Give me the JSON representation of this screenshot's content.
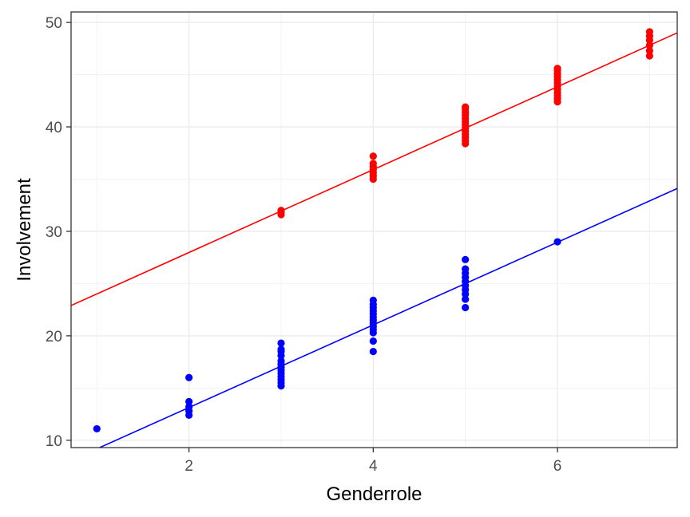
{
  "chart_data": {
    "type": "scatter",
    "xlabel": "Genderrole",
    "ylabel": "Involvement",
    "xlim": [
      0.72,
      7.3
    ],
    "ylim": [
      9.3,
      51.0
    ],
    "x_ticks": [
      2,
      4,
      6
    ],
    "x_tick_labels": [
      "2",
      "4",
      "6"
    ],
    "y_ticks": [
      10,
      20,
      30,
      40,
      50
    ],
    "y_tick_labels": [
      "10",
      "20",
      "30",
      "40",
      "50"
    ],
    "grid": true,
    "legend": "none",
    "series": [
      {
        "color": "#ff0000",
        "points": [
          [
            3,
            31.6
          ],
          [
            3,
            31.8
          ],
          [
            3,
            32.0
          ],
          [
            4,
            35.0
          ],
          [
            4,
            35.3
          ],
          [
            4,
            35.6
          ],
          [
            4,
            35.9
          ],
          [
            4,
            36.2
          ],
          [
            4,
            36.5
          ],
          [
            4,
            37.2
          ],
          [
            5,
            38.4
          ],
          [
            5,
            38.7
          ],
          [
            5,
            39.0
          ],
          [
            5,
            39.3
          ],
          [
            5,
            39.6
          ],
          [
            5,
            39.9
          ],
          [
            5,
            40.2
          ],
          [
            5,
            40.5
          ],
          [
            5,
            40.8
          ],
          [
            5,
            41.1
          ],
          [
            5,
            41.4
          ],
          [
            5,
            41.7
          ],
          [
            5,
            41.9
          ],
          [
            6,
            42.4
          ],
          [
            6,
            42.7
          ],
          [
            6,
            43.0
          ],
          [
            6,
            43.3
          ],
          [
            6,
            43.6
          ],
          [
            6,
            43.9
          ],
          [
            6,
            44.2
          ],
          [
            6,
            44.5
          ],
          [
            6,
            44.8
          ],
          [
            6,
            45.1
          ],
          [
            6,
            45.4
          ],
          [
            6,
            45.6
          ],
          [
            7,
            46.8
          ],
          [
            7,
            47.3
          ],
          [
            7,
            47.8
          ],
          [
            7,
            48.3
          ],
          [
            7,
            48.7
          ],
          [
            7,
            49.1
          ]
        ],
        "fit_line": {
          "x": [
            0.72,
            7.3
          ],
          "y": [
            22.9,
            49.0
          ]
        }
      },
      {
        "color": "#0000ff",
        "points": [
          [
            1,
            11.1
          ],
          [
            2,
            12.4
          ],
          [
            2,
            12.8
          ],
          [
            2,
            13.2
          ],
          [
            2,
            13.7
          ],
          [
            2,
            16.0
          ],
          [
            3,
            15.2
          ],
          [
            3,
            15.5
          ],
          [
            3,
            15.8
          ],
          [
            3,
            16.1
          ],
          [
            3,
            16.4
          ],
          [
            3,
            16.7
          ],
          [
            3,
            17.0
          ],
          [
            3,
            17.3
          ],
          [
            3,
            17.6
          ],
          [
            3,
            18.1
          ],
          [
            3,
            18.5
          ],
          [
            3,
            18.7
          ],
          [
            3,
            19.3
          ],
          [
            4,
            18.5
          ],
          [
            4,
            19.5
          ],
          [
            4,
            20.3
          ],
          [
            4,
            20.6
          ],
          [
            4,
            20.9
          ],
          [
            4,
            21.2
          ],
          [
            4,
            21.5
          ],
          [
            4,
            21.8
          ],
          [
            4,
            22.1
          ],
          [
            4,
            22.4
          ],
          [
            4,
            22.7
          ],
          [
            4,
            23.0
          ],
          [
            4,
            23.4
          ],
          [
            5,
            22.7
          ],
          [
            5,
            23.5
          ],
          [
            5,
            24.0
          ],
          [
            5,
            24.4
          ],
          [
            5,
            24.8
          ],
          [
            5,
            25.2
          ],
          [
            5,
            25.6
          ],
          [
            5,
            26.0
          ],
          [
            5,
            26.4
          ],
          [
            5,
            27.3
          ],
          [
            6,
            29.0
          ]
        ],
        "fit_line": {
          "x": [
            1.03,
            7.3
          ],
          "y": [
            9.3,
            34.1
          ]
        }
      }
    ]
  }
}
